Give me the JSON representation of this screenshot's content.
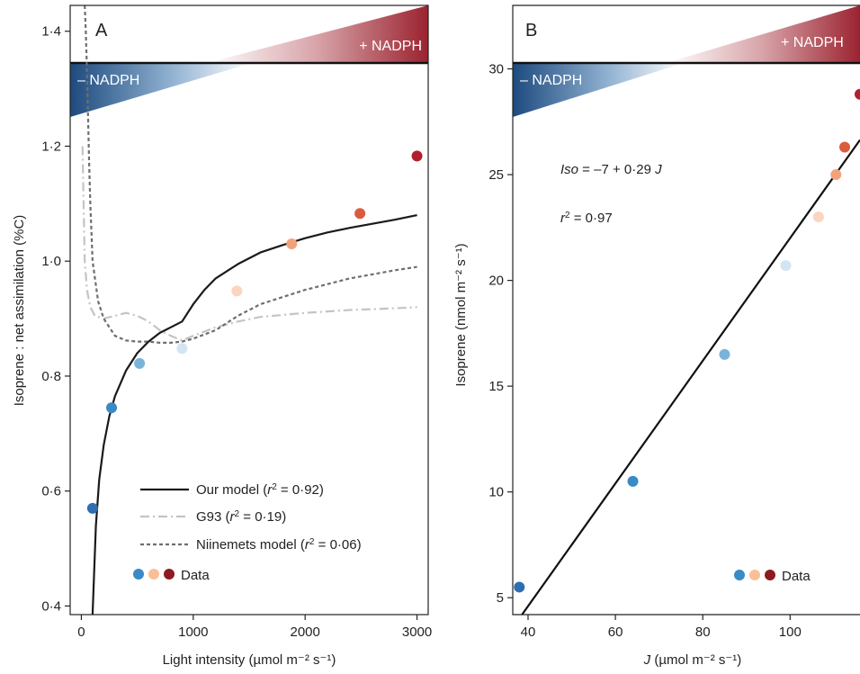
{
  "colors": {
    "data_points": [
      "#2f6eb0",
      "#3a8ac6",
      "#7ab3da",
      "#d1e5f3",
      "#fbd5bd",
      "#f2a27b",
      "#d95d3d",
      "#b2202b"
    ],
    "band_neg": "#1d4a7e",
    "band_pos": "#9b2330",
    "our_model": "#1a1a1a",
    "g93": "#c4c4c4",
    "niinemets": "#6e6e6e"
  },
  "chart_data": [
    {
      "panel": "A",
      "type": "scatter",
      "xlabel": "Light intensity (µmol m⁻² s⁻¹)",
      "ylabel": "Isoprene : net assimilation (%C)",
      "xlim": [
        -100,
        3100
      ],
      "ylim": [
        0.385,
        1.445
      ],
      "x_ticks": [
        {
          "value": 0,
          "label": "0"
        },
        {
          "value": 1000,
          "label": "1000"
        },
        {
          "value": 2000,
          "label": "2000"
        },
        {
          "value": 3000,
          "label": "3000"
        }
      ],
      "y_ticks": [
        {
          "value": 0.4,
          "label": "0·4"
        },
        {
          "value": 0.6,
          "label": "0·6"
        },
        {
          "value": 0.8,
          "label": "0·8"
        },
        {
          "value": 1.0,
          "label": "1·0"
        },
        {
          "value": 1.2,
          "label": "1·2"
        },
        {
          "value": 1.4,
          "label": "1·4"
        }
      ],
      "band": {
        "neg_label": "– NADPH",
        "pos_label": "+ NADPH"
      },
      "points": [
        {
          "x": 100,
          "y": 0.57
        },
        {
          "x": 270,
          "y": 0.745
        },
        {
          "x": 520,
          "y": 0.822
        },
        {
          "x": 900,
          "y": 0.848
        },
        {
          "x": 1390,
          "y": 0.948
        },
        {
          "x": 1880,
          "y": 1.03
        },
        {
          "x": 2490,
          "y": 1.083
        },
        {
          "x": 3000,
          "y": 1.183
        }
      ],
      "series": [
        {
          "name": "Our model",
          "r2_label": "0·92",
          "style": "solid",
          "x": [
            100,
            130,
            160,
            200,
            250,
            300,
            400,
            500,
            600,
            700,
            800,
            900,
            1000,
            1100,
            1200,
            1400,
            1600,
            1800,
            2000,
            2200,
            2400,
            2600,
            2800,
            3000
          ],
          "y": [
            0.385,
            0.54,
            0.62,
            0.68,
            0.73,
            0.765,
            0.81,
            0.84,
            0.86,
            0.875,
            0.885,
            0.895,
            0.925,
            0.95,
            0.97,
            0.995,
            1.015,
            1.028,
            1.04,
            1.05,
            1.058,
            1.065,
            1.072,
            1.08
          ]
        },
        {
          "name": "G93",
          "r2_label": "0·19",
          "style": "dashdot",
          "x": [
            10,
            20,
            30,
            50,
            80,
            120,
            200,
            300,
            400,
            500,
            600,
            700,
            800,
            900,
            1000,
            1200,
            1400,
            1600,
            2000,
            2400,
            2800,
            3000
          ],
          "y": [
            1.2,
            1.1,
            1.0,
            0.95,
            0.92,
            0.905,
            0.9,
            0.905,
            0.91,
            0.905,
            0.895,
            0.88,
            0.87,
            0.862,
            0.87,
            0.885,
            0.895,
            0.903,
            0.91,
            0.915,
            0.918,
            0.92
          ]
        },
        {
          "name": "Niinemets model",
          "r2_label": "0·06",
          "style": "dashed",
          "x": [
            30,
            40,
            50,
            60,
            70,
            80,
            100,
            150,
            200,
            300,
            400,
            500,
            600,
            700,
            800,
            900,
            1000,
            1200,
            1400,
            1600,
            2000,
            2400,
            2800,
            3000
          ],
          "y": [
            1.445,
            1.4,
            1.33,
            1.25,
            1.17,
            1.1,
            1.0,
            0.93,
            0.9,
            0.87,
            0.862,
            0.86,
            0.86,
            0.858,
            0.858,
            0.86,
            0.865,
            0.88,
            0.905,
            0.925,
            0.95,
            0.97,
            0.984,
            0.99
          ]
        }
      ],
      "legend": {
        "entries": [
          {
            "key": "our_model",
            "label": "Our model",
            "r2": "0·92"
          },
          {
            "key": "g93",
            "label": "G93",
            "r2": "0·19"
          },
          {
            "key": "niinemets",
            "label": "Niinemets model",
            "r2": "0·06"
          }
        ],
        "data_label": "Data"
      }
    },
    {
      "panel": "B",
      "type": "scatter",
      "xlabel": "J (µmol m⁻² s⁻¹)",
      "ylabel": "Isoprene (nmol m⁻² s⁻¹)",
      "xlim": [
        36.5,
        116
      ],
      "ylim": [
        4.2,
        33
      ],
      "x_ticks": [
        {
          "value": 40,
          "label": "40"
        },
        {
          "value": 60,
          "label": "60"
        },
        {
          "value": 80,
          "label": "80"
        },
        {
          "value": 100,
          "label": "100"
        }
      ],
      "y_ticks": [
        {
          "value": 5,
          "label": "5"
        },
        {
          "value": 10,
          "label": "10"
        },
        {
          "value": 15,
          "label": "15"
        },
        {
          "value": 20,
          "label": "20"
        },
        {
          "value": 25,
          "label": "25"
        },
        {
          "value": 30,
          "label": "30"
        }
      ],
      "band": {
        "neg_label": "– NADPH",
        "pos_label": "+ NADPH"
      },
      "points": [
        {
          "x": 38,
          "y": 5.5
        },
        {
          "x": 64,
          "y": 10.5
        },
        {
          "x": 85,
          "y": 16.5
        },
        {
          "x": 99,
          "y": 20.7
        },
        {
          "x": 106.5,
          "y": 23
        },
        {
          "x": 110.5,
          "y": 25
        },
        {
          "x": 112.5,
          "y": 26.3
        },
        {
          "x": 116,
          "y": 28.8
        }
      ],
      "fit": {
        "intercept": -7,
        "slope": 0.29
      },
      "equation": {
        "lhs": "Iso",
        "rhs": " = –7 + 0·29 ",
        "var": "J"
      },
      "r2_label": "0·97",
      "legend": {
        "data_label": "Data"
      }
    }
  ]
}
